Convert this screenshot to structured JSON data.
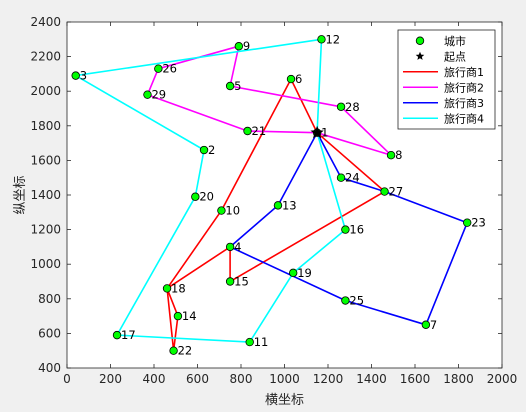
{
  "chart_data": {
    "type": "line",
    "xlabel": "横坐标",
    "ylabel": "纵坐标",
    "xlim": [
      0,
      2000
    ],
    "ylim": [
      400,
      2400
    ],
    "xticks": [
      0,
      200,
      400,
      600,
      800,
      1000,
      1200,
      1400,
      1600,
      1800,
      2000
    ],
    "yticks": [
      400,
      600,
      800,
      1000,
      1200,
      1400,
      1600,
      1800,
      2000,
      2200,
      2400
    ],
    "grid": false,
    "legend_position": "top-right",
    "cities": [
      {
        "label": "1",
        "x": 1150,
        "y": 1760
      },
      {
        "label": "2",
        "x": 630,
        "y": 1660
      },
      {
        "label": "3",
        "x": 40,
        "y": 2090
      },
      {
        "label": "4",
        "x": 750,
        "y": 1100
      },
      {
        "label": "5",
        "x": 750,
        "y": 2030
      },
      {
        "label": "6",
        "x": 1030,
        "y": 2070
      },
      {
        "label": "7",
        "x": 1650,
        "y": 650
      },
      {
        "label": "8",
        "x": 1490,
        "y": 1630
      },
      {
        "label": "9",
        "x": 790,
        "y": 2260
      },
      {
        "label": "10",
        "x": 710,
        "y": 1310
      },
      {
        "label": "11",
        "x": 840,
        "y": 550
      },
      {
        "label": "12",
        "x": 1170,
        "y": 2300
      },
      {
        "label": "13",
        "x": 970,
        "y": 1340
      },
      {
        "label": "14",
        "x": 510,
        "y": 700
      },
      {
        "label": "15",
        "x": 750,
        "y": 900
      },
      {
        "label": "16",
        "x": 1280,
        "y": 1200
      },
      {
        "label": "17",
        "x": 230,
        "y": 590
      },
      {
        "label": "18",
        "x": 460,
        "y": 860
      },
      {
        "label": "19",
        "x": 1040,
        "y": 950
      },
      {
        "label": "20",
        "x": 590,
        "y": 1390
      },
      {
        "label": "21",
        "x": 830,
        "y": 1770
      },
      {
        "label": "22",
        "x": 490,
        "y": 500
      },
      {
        "label": "23",
        "x": 1840,
        "y": 1240
      },
      {
        "label": "24",
        "x": 1260,
        "y": 1500
      },
      {
        "label": "25",
        "x": 1280,
        "y": 790
      },
      {
        "label": "26",
        "x": 420,
        "y": 2130
      },
      {
        "label": "27",
        "x": 1460,
        "y": 1420
      },
      {
        "label": "28",
        "x": 1260,
        "y": 1910
      },
      {
        "label": "29",
        "x": 370,
        "y": 1980
      }
    ],
    "start": {
      "label": "起点",
      "x": 1150,
      "y": 1760
    },
    "legend_labels": {
      "cities": "城市",
      "start": "起点"
    },
    "series": [
      {
        "name": "旅行商1",
        "color": "#ff0000",
        "route": [
          "1",
          "27",
          "15",
          "4",
          "18",
          "22",
          "14",
          "18",
          "10",
          "6",
          "1"
        ]
      },
      {
        "name": "旅行商2",
        "color": "#ff00ff",
        "route": [
          "1",
          "21",
          "29",
          "26",
          "9",
          "5",
          "28",
          "8",
          "1"
        ]
      },
      {
        "name": "旅行商3",
        "color": "#0000ff",
        "route": [
          "1",
          "24",
          "27",
          "23",
          "7",
          "25",
          "4",
          "13",
          "1"
        ]
      },
      {
        "name": "旅行商4",
        "color": "#00ffff",
        "route": [
          "1",
          "12",
          "3",
          "2",
          "20",
          "17",
          "11",
          "19",
          "16",
          "1"
        ]
      }
    ],
    "colors": {
      "city_fill": "#00ff00",
      "city_edge": "#000000",
      "axes_background": "#ffffff",
      "figure_background": "#f0f0f0"
    }
  }
}
